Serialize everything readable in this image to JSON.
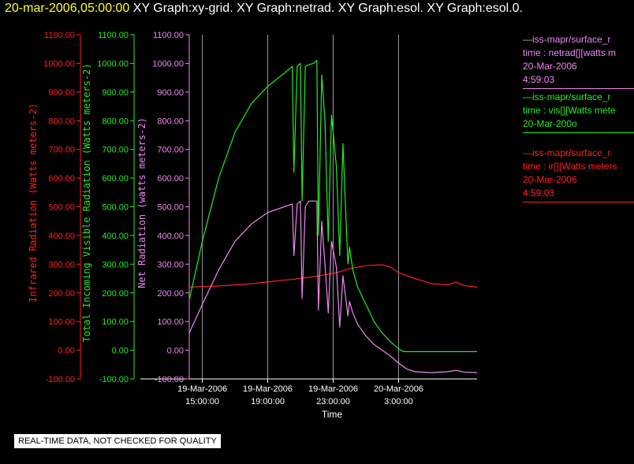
{
  "title": {
    "timestamp": "20-mar-2006,05:00:00",
    "rest": "XY Graph:xy-grid.  XY Graph:netrad.  XY Graph:esol.  XY Graph:esol.0."
  },
  "disclaimer": "REAL-TIME DATA, NOT CHECKED FOR QUALITY",
  "colors": {
    "ir": "#ff2020",
    "vis": "#22ee22",
    "net": "#ee88ee",
    "axis": "#ffffff",
    "grid": "#999999"
  },
  "legend": [
    {
      "lines": [
        "—iss-mapr/surface_r",
        "time : netrad[][watts m",
        "20-Mar-2006",
        "4:59:03"
      ],
      "color": "#ee88ee"
    },
    {
      "lines": [
        "—iss-mapr/surface_r",
        "time : vis[][Watts mete",
        "20-Mar-200o"
      ],
      "color": "#22ee22"
    },
    {
      "lines": [
        "—iss-mapr/surface_r",
        "time : ir[][Watts meters",
        "20-Mar-2006",
        "4:59:03"
      ],
      "color": "#ff2020"
    }
  ],
  "chart_data": {
    "type": "line",
    "xlabel": "Time",
    "x_range_hours": [
      14.2,
      31.8
    ],
    "x_ticks": [
      {
        "hours": 15,
        "label": [
          "19-Mar-2006",
          "15:00:00"
        ]
      },
      {
        "hours": 19,
        "label": [
          "19-Mar-2006",
          "19:00:00"
        ]
      },
      {
        "hours": 23,
        "label": [
          "19-Mar-2006",
          "23:00:00"
        ]
      },
      {
        "hours": 27,
        "label": [
          "20-Mar-2006",
          "3:00:00"
        ]
      }
    ],
    "y_ticks": [
      "1100.00",
      "1000.00",
      "900.00",
      "800.00",
      "700.00",
      "600.00",
      "500.00",
      "400.00",
      "300.00",
      "200.00",
      "100.00",
      "0.00",
      "-100.00"
    ],
    "ylim": [
      -100,
      1100
    ],
    "axes": [
      {
        "label": "Infrared Radiation (Watts meters-2)",
        "color": "#ff2020"
      },
      {
        "label": "Total Incoming Visible Radiation (Watts meters-2)",
        "color": "#22ee22"
      },
      {
        "label": "Net Radiation (watts meters-2)",
        "color": "#ee88ee"
      }
    ],
    "grid": true,
    "series": [
      {
        "key": "ir",
        "color": "#ff2020",
        "points": [
          [
            14.2,
            220
          ],
          [
            15,
            222
          ],
          [
            16,
            224
          ],
          [
            17,
            228
          ],
          [
            18,
            232
          ],
          [
            19,
            238
          ],
          [
            20,
            244
          ],
          [
            21,
            250
          ],
          [
            22,
            258
          ],
          [
            23,
            268
          ],
          [
            23.5,
            275
          ],
          [
            24,
            285
          ],
          [
            25,
            295
          ],
          [
            26,
            298
          ],
          [
            26.5,
            290
          ],
          [
            27,
            270
          ],
          [
            28,
            250
          ],
          [
            29,
            232
          ],
          [
            30,
            228
          ],
          [
            30.5,
            238
          ],
          [
            31,
            226
          ],
          [
            31.8,
            220
          ]
        ]
      },
      {
        "key": "vis",
        "color": "#22ee22",
        "points": [
          [
            14.2,
            175
          ],
          [
            15,
            380
          ],
          [
            16,
            600
          ],
          [
            17,
            760
          ],
          [
            18,
            860
          ],
          [
            19,
            920
          ],
          [
            20,
            965
          ],
          [
            20.5,
            990
          ],
          [
            20.6,
            620
          ],
          [
            20.8,
            990
          ],
          [
            21,
            1000
          ],
          [
            21.1,
            520
          ],
          [
            21.3,
            990
          ],
          [
            21.5,
            995
          ],
          [
            21.8,
            1000
          ],
          [
            22,
            1010
          ],
          [
            22.1,
            400
          ],
          [
            22.3,
            960
          ],
          [
            22.5,
            800
          ],
          [
            22.7,
            380
          ],
          [
            22.9,
            820
          ],
          [
            23.2,
            640
          ],
          [
            23.4,
            330
          ],
          [
            23.6,
            720
          ],
          [
            23.9,
            300
          ],
          [
            24,
            360
          ],
          [
            24.2,
            280
          ],
          [
            24.5,
            220
          ],
          [
            25,
            160
          ],
          [
            25.5,
            100
          ],
          [
            26,
            60
          ],
          [
            26.5,
            30
          ],
          [
            27,
            5
          ],
          [
            27.3,
            -5
          ],
          [
            28,
            -5
          ],
          [
            29,
            -5
          ],
          [
            30,
            -5
          ],
          [
            31,
            -5
          ],
          [
            31.8,
            -5
          ]
        ]
      },
      {
        "key": "net",
        "color": "#ee88ee",
        "points": [
          [
            14.2,
            60
          ],
          [
            15,
            160
          ],
          [
            16,
            280
          ],
          [
            17,
            380
          ],
          [
            18,
            440
          ],
          [
            19,
            480
          ],
          [
            20,
            500
          ],
          [
            20.5,
            510
          ],
          [
            20.6,
            330
          ],
          [
            20.8,
            510
          ],
          [
            21,
            520
          ],
          [
            21.1,
            180
          ],
          [
            21.3,
            500
          ],
          [
            21.5,
            520
          ],
          [
            21.8,
            520
          ],
          [
            22,
            520
          ],
          [
            22.1,
            140
          ],
          [
            22.3,
            450
          ],
          [
            22.5,
            300
          ],
          [
            22.7,
            130
          ],
          [
            22.9,
            380
          ],
          [
            23.2,
            290
          ],
          [
            23.4,
            80
          ],
          [
            23.6,
            260
          ],
          [
            23.9,
            120
          ],
          [
            24,
            170
          ],
          [
            24.2,
            130
          ],
          [
            24.5,
            90
          ],
          [
            25,
            50
          ],
          [
            25.5,
            20
          ],
          [
            26,
            0
          ],
          [
            26.5,
            -20
          ],
          [
            27,
            -45
          ],
          [
            27.5,
            -65
          ],
          [
            28,
            -75
          ],
          [
            29,
            -78
          ],
          [
            30,
            -75
          ],
          [
            30.5,
            -70
          ],
          [
            31,
            -76
          ],
          [
            31.8,
            -78
          ]
        ]
      }
    ]
  }
}
